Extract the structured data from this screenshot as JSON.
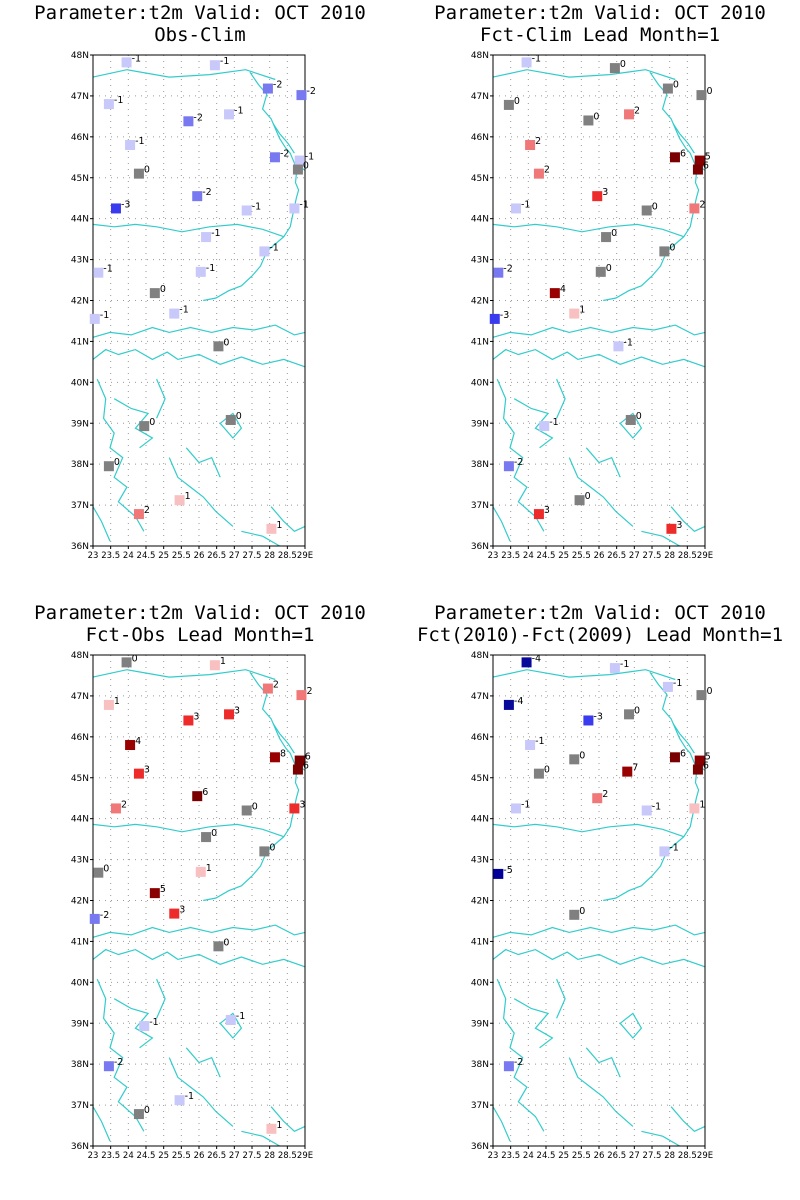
{
  "palette": {
    "-5": "#000099",
    "-4": "#0a0a9a",
    "-3": "#3a3aee",
    "-2": "#7878f0",
    "-1": "#c8c8fa",
    "0": "#808080",
    "1": "#f8c0c0",
    "2": "#f07878",
    "3": "#ee2b2b",
    "4": "#990000",
    "5": "#8a0000",
    "6": "#7a0000",
    "7": "#990000"
  },
  "coast_color": "#33cccc",
  "grid": "dotted",
  "chart_data": [
    {
      "type": "scatter",
      "title": "Parameter:t2m Valid: OCT 2010",
      "subtitle": "Obs-Clim",
      "x_ticks": [
        "23",
        "23.5",
        "24",
        "24.5",
        "25",
        "25.5",
        "26",
        "26.5",
        "27",
        "27.5",
        "28",
        "28.5",
        "29E"
      ],
      "y_ticks": [
        "36N",
        "37N",
        "38N",
        "39N",
        "40N",
        "41N",
        "42N",
        "43N",
        "44N",
        "45N",
        "46N",
        "47N",
        "48N"
      ],
      "xlim": [
        23,
        29
      ],
      "ylim": [
        36,
        48
      ],
      "points": [
        {
          "lon": 23.95,
          "lat": 47.82,
          "v": -1
        },
        {
          "lon": 26.45,
          "lat": 47.75,
          "v": -1
        },
        {
          "lon": 27.95,
          "lat": 47.18,
          "v": -2
        },
        {
          "lon": 28.9,
          "lat": 47.02,
          "v": -2
        },
        {
          "lon": 23.45,
          "lat": 46.8,
          "v": -1
        },
        {
          "lon": 25.7,
          "lat": 46.38,
          "v": -2
        },
        {
          "lon": 26.85,
          "lat": 46.55,
          "v": -1
        },
        {
          "lon": 24.05,
          "lat": 45.8,
          "v": -1
        },
        {
          "lon": 28.15,
          "lat": 45.5,
          "v": -2
        },
        {
          "lon": 28.85,
          "lat": 45.42,
          "v": -1
        },
        {
          "lon": 24.3,
          "lat": 45.1,
          "v": 0
        },
        {
          "lon": 28.8,
          "lat": 45.2,
          "v": 0
        },
        {
          "lon": 25.95,
          "lat": 44.55,
          "v": -2
        },
        {
          "lon": 23.65,
          "lat": 44.25,
          "v": -3
        },
        {
          "lon": 27.35,
          "lat": 44.2,
          "v": -1
        },
        {
          "lon": 28.7,
          "lat": 44.25,
          "v": -1
        },
        {
          "lon": 26.2,
          "lat": 43.55,
          "v": -1
        },
        {
          "lon": 27.85,
          "lat": 43.2,
          "v": -1
        },
        {
          "lon": 23.15,
          "lat": 42.68,
          "v": -1
        },
        {
          "lon": 26.05,
          "lat": 42.7,
          "v": -1
        },
        {
          "lon": 24.75,
          "lat": 42.18,
          "v": 0
        },
        {
          "lon": 25.3,
          "lat": 41.68,
          "v": -1
        },
        {
          "lon": 23.05,
          "lat": 41.55,
          "v": -1
        },
        {
          "lon": 26.55,
          "lat": 40.88,
          "v": 0
        },
        {
          "lon": 24.45,
          "lat": 38.93,
          "v": 0
        },
        {
          "lon": 26.9,
          "lat": 39.08,
          "v": 0
        },
        {
          "lon": 23.45,
          "lat": 37.95,
          "v": 0
        },
        {
          "lon": 25.45,
          "lat": 37.12,
          "v": 1
        },
        {
          "lon": 24.3,
          "lat": 36.78,
          "v": 2
        },
        {
          "lon": 28.05,
          "lat": 36.42,
          "v": 1
        }
      ]
    },
    {
      "type": "scatter",
      "title": "Parameter:t2m Valid: OCT 2010",
      "subtitle": "Fct-Clim Lead Month=1",
      "x_ticks": [
        "23",
        "23.5",
        "24",
        "24.5",
        "25",
        "25.5",
        "26",
        "26.5",
        "27",
        "27.5",
        "28",
        "28.5",
        "29E"
      ],
      "y_ticks": [
        "36N",
        "37N",
        "38N",
        "39N",
        "40N",
        "41N",
        "42N",
        "43N",
        "44N",
        "45N",
        "46N",
        "47N",
        "48N"
      ],
      "xlim": [
        23,
        29
      ],
      "ylim": [
        36,
        48
      ],
      "points": [
        {
          "lon": 23.95,
          "lat": 47.82,
          "v": -1
        },
        {
          "lon": 26.45,
          "lat": 47.68,
          "v": 0
        },
        {
          "lon": 27.95,
          "lat": 47.18,
          "v": 0
        },
        {
          "lon": 28.9,
          "lat": 47.02,
          "v": 0
        },
        {
          "lon": 23.45,
          "lat": 46.78,
          "v": 0
        },
        {
          "lon": 25.7,
          "lat": 46.4,
          "v": 0
        },
        {
          "lon": 26.85,
          "lat": 46.55,
          "v": 2
        },
        {
          "lon": 24.05,
          "lat": 45.8,
          "v": 2
        },
        {
          "lon": 28.15,
          "lat": 45.5,
          "v": 6
        },
        {
          "lon": 28.85,
          "lat": 45.42,
          "v": 5
        },
        {
          "lon": 24.3,
          "lat": 45.1,
          "v": 2
        },
        {
          "lon": 28.8,
          "lat": 45.2,
          "v": 6
        },
        {
          "lon": 25.95,
          "lat": 44.55,
          "v": 3
        },
        {
          "lon": 23.65,
          "lat": 44.25,
          "v": -1
        },
        {
          "lon": 27.35,
          "lat": 44.2,
          "v": 0
        },
        {
          "lon": 28.7,
          "lat": 44.25,
          "v": 2
        },
        {
          "lon": 26.2,
          "lat": 43.55,
          "v": 0
        },
        {
          "lon": 27.85,
          "lat": 43.2,
          "v": 0
        },
        {
          "lon": 23.15,
          "lat": 42.68,
          "v": -2
        },
        {
          "lon": 26.05,
          "lat": 42.7,
          "v": 0
        },
        {
          "lon": 24.75,
          "lat": 42.18,
          "v": 4
        },
        {
          "lon": 25.3,
          "lat": 41.68,
          "v": 1
        },
        {
          "lon": 23.05,
          "lat": 41.55,
          "v": -3
        },
        {
          "lon": 26.55,
          "lat": 40.88,
          "v": -1
        },
        {
          "lon": 24.45,
          "lat": 38.93,
          "v": -1
        },
        {
          "lon": 26.9,
          "lat": 39.08,
          "v": 0
        },
        {
          "lon": 23.45,
          "lat": 37.95,
          "v": -2
        },
        {
          "lon": 25.45,
          "lat": 37.12,
          "v": 0
        },
        {
          "lon": 24.3,
          "lat": 36.78,
          "v": 3
        },
        {
          "lon": 28.05,
          "lat": 36.42,
          "v": 3
        }
      ]
    },
    {
      "type": "scatter",
      "title": "Parameter:t2m Valid: OCT 2010",
      "subtitle": "Fct-Obs Lead Month=1",
      "x_ticks": [
        "23",
        "23.5",
        "24",
        "24.5",
        "25",
        "25.5",
        "26",
        "26.5",
        "27",
        "27.5",
        "28",
        "28.5",
        "29E"
      ],
      "y_ticks": [
        "36N",
        "37N",
        "38N",
        "39N",
        "40N",
        "41N",
        "42N",
        "43N",
        "44N",
        "45N",
        "46N",
        "47N",
        "48N"
      ],
      "xlim": [
        23,
        29
      ],
      "ylim": [
        36,
        48
      ],
      "points": [
        {
          "lon": 23.95,
          "lat": 47.82,
          "v": 0
        },
        {
          "lon": 26.45,
          "lat": 47.75,
          "v": 1
        },
        {
          "lon": 27.95,
          "lat": 47.18,
          "v": 2
        },
        {
          "lon": 28.9,
          "lat": 47.02,
          "v": 2
        },
        {
          "lon": 23.45,
          "lat": 46.78,
          "v": 1
        },
        {
          "lon": 25.7,
          "lat": 46.4,
          "v": 3
        },
        {
          "lon": 26.85,
          "lat": 46.55,
          "v": 3
        },
        {
          "lon": 24.05,
          "lat": 45.8,
          "v": 4
        },
        {
          "lon": 28.15,
          "lat": 45.5,
          "v": 8
        },
        {
          "lon": 28.85,
          "lat": 45.42,
          "v": 6
        },
        {
          "lon": 24.3,
          "lat": 45.1,
          "v": 3
        },
        {
          "lon": 28.8,
          "lat": 45.2,
          "v": 6
        },
        {
          "lon": 25.95,
          "lat": 44.55,
          "v": 6
        },
        {
          "lon": 23.65,
          "lat": 44.25,
          "v": 2
        },
        {
          "lon": 27.35,
          "lat": 44.2,
          "v": 0
        },
        {
          "lon": 28.7,
          "lat": 44.25,
          "v": 3
        },
        {
          "lon": 26.2,
          "lat": 43.55,
          "v": 0
        },
        {
          "lon": 27.85,
          "lat": 43.2,
          "v": 0
        },
        {
          "lon": 23.15,
          "lat": 42.68,
          "v": 0
        },
        {
          "lon": 26.05,
          "lat": 42.7,
          "v": 1
        },
        {
          "lon": 24.75,
          "lat": 42.18,
          "v": 5
        },
        {
          "lon": 25.3,
          "lat": 41.68,
          "v": 3
        },
        {
          "lon": 23.05,
          "lat": 41.55,
          "v": -2
        },
        {
          "lon": 26.55,
          "lat": 40.88,
          "v": 0
        },
        {
          "lon": 24.45,
          "lat": 38.93,
          "v": -1
        },
        {
          "lon": 26.9,
          "lat": 39.08,
          "v": -1
        },
        {
          "lon": 23.45,
          "lat": 37.95,
          "v": -2
        },
        {
          "lon": 25.45,
          "lat": 37.12,
          "v": -1
        },
        {
          "lon": 24.3,
          "lat": 36.78,
          "v": 0
        },
        {
          "lon": 28.05,
          "lat": 36.42,
          "v": 1
        }
      ]
    },
    {
      "type": "scatter",
      "title": "Parameter:t2m Valid: OCT 2010",
      "subtitle": "Fct(2010)-Fct(2009) Lead Month=1",
      "x_ticks": [
        "23",
        "23.5",
        "24",
        "24.5",
        "25",
        "25.5",
        "26",
        "26.5",
        "27",
        "27.5",
        "28",
        "28.5",
        "29E"
      ],
      "y_ticks": [
        "36N",
        "37N",
        "38N",
        "39N",
        "40N",
        "41N",
        "42N",
        "43N",
        "44N",
        "45N",
        "46N",
        "47N",
        "48N"
      ],
      "xlim": [
        23,
        29
      ],
      "ylim": [
        36,
        48
      ],
      "points": [
        {
          "lon": 23.95,
          "lat": 47.82,
          "v": -4
        },
        {
          "lon": 26.45,
          "lat": 47.68,
          "v": -1
        },
        {
          "lon": 27.95,
          "lat": 47.22,
          "v": -1
        },
        {
          "lon": 28.9,
          "lat": 47.02,
          "v": 0
        },
        {
          "lon": 23.45,
          "lat": 46.78,
          "v": -4
        },
        {
          "lon": 25.7,
          "lat": 46.4,
          "v": -3
        },
        {
          "lon": 26.85,
          "lat": 46.55,
          "v": 0
        },
        {
          "lon": 24.05,
          "lat": 45.8,
          "v": -1
        },
        {
          "lon": 28.15,
          "lat": 45.5,
          "v": 6
        },
        {
          "lon": 28.85,
          "lat": 45.42,
          "v": 5
        },
        {
          "lon": 24.3,
          "lat": 45.1,
          "v": 0
        },
        {
          "lon": 25.3,
          "lat": 45.45,
          "v": 0
        },
        {
          "lon": 26.8,
          "lat": 45.15,
          "v": 7
        },
        {
          "lon": 28.8,
          "lat": 45.2,
          "v": 6
        },
        {
          "lon": 25.95,
          "lat": 44.5,
          "v": 2
        },
        {
          "lon": 23.65,
          "lat": 44.25,
          "v": -1
        },
        {
          "lon": 27.35,
          "lat": 44.2,
          "v": -1
        },
        {
          "lon": 28.7,
          "lat": 44.25,
          "v": 1
        },
        {
          "lon": 27.85,
          "lat": 43.2,
          "v": -1
        },
        {
          "lon": 23.15,
          "lat": 42.65,
          "v": -5
        },
        {
          "lon": 25.3,
          "lat": 41.65,
          "v": 0
        },
        {
          "lon": 23.45,
          "lat": 37.95,
          "v": -2
        }
      ]
    }
  ]
}
